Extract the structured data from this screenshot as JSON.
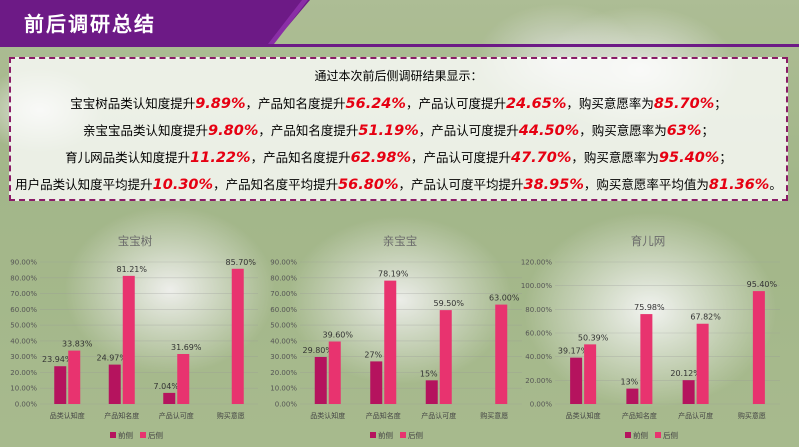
{
  "page": {
    "title": "前后调研总结",
    "summary_intro": "通过本次前后侧调研结果显示：",
    "summary_lines": [
      [
        {
          "t": "宝宝树品类认知度提升"
        },
        {
          "t": "9.89%",
          "v": true
        },
        {
          "t": "，产品知名度提升"
        },
        {
          "t": "56.24%",
          "v": true
        },
        {
          "t": "，产品认可度提升"
        },
        {
          "t": "24.65%",
          "v": true
        },
        {
          "t": "，购买意愿率为"
        },
        {
          "t": "85.70%",
          "v": true
        },
        {
          "t": "；"
        }
      ],
      [
        {
          "t": "亲宝宝品类认知度提升"
        },
        {
          "t": "9.80%",
          "v": true
        },
        {
          "t": "，产品知名度提升"
        },
        {
          "t": "51.19%",
          "v": true
        },
        {
          "t": "，产品认可度提升"
        },
        {
          "t": "44.50%",
          "v": true
        },
        {
          "t": "，购买意愿率为"
        },
        {
          "t": "63%",
          "v": true
        },
        {
          "t": "；"
        }
      ],
      [
        {
          "t": "育儿网品类认知度提升"
        },
        {
          "t": "11.22%",
          "v": true
        },
        {
          "t": "，产品知名度提升"
        },
        {
          "t": "62.98%",
          "v": true
        },
        {
          "t": "，产品认可度提升"
        },
        {
          "t": "47.70%",
          "v": true
        },
        {
          "t": "，购买意愿率为"
        },
        {
          "t": "95.40%",
          "v": true
        },
        {
          "t": "；"
        }
      ],
      [
        {
          "t": "用户品类认知度平均提升"
        },
        {
          "t": "10.30%",
          "v": true
        },
        {
          "t": "，产品知名度平均提升"
        },
        {
          "t": "56.80%",
          "v": true
        },
        {
          "t": "，产品认可度平均提升"
        },
        {
          "t": "38.95%",
          "v": true
        },
        {
          "t": "，购买意愿率平均值为"
        },
        {
          "t": "81.36%",
          "v": true
        },
        {
          "t": "。"
        }
      ]
    ]
  },
  "colors": {
    "before": "#b5135e",
    "after": "#e8336f",
    "summary_value": "#e60012",
    "banner": "#6d1a86"
  },
  "chart_data": [
    {
      "type": "bar",
      "title": "宝宝树",
      "categories": [
        "品类认知度",
        "产品知名度",
        "产品认可度",
        "购买意愿"
      ],
      "series": [
        {
          "name": "前侧",
          "values": [
            23.94,
            24.97,
            7.04,
            null
          ],
          "labels": [
            "23.94%",
            "24.97%",
            "7.04%",
            ""
          ]
        },
        {
          "name": "后侧",
          "values": [
            33.83,
            81.21,
            31.69,
            85.7
          ],
          "labels": [
            "33.83%",
            "81.21%",
            "31.69%",
            "85.70%"
          ]
        }
      ],
      "ylim": [
        0,
        90
      ],
      "yticks": [
        "0.00%",
        "10.00%",
        "20.00%",
        "30.00%",
        "40.00%",
        "50.00%",
        "60.00%",
        "70.00%",
        "80.00%",
        "90.00%"
      ],
      "ytick_values": [
        0,
        10,
        20,
        30,
        40,
        50,
        60,
        70,
        80,
        90
      ],
      "grid": true,
      "legend": "bottom"
    },
    {
      "type": "bar",
      "title": "亲宝宝",
      "categories": [
        "品类认知度",
        "产品知名度",
        "产品认可度",
        "购买意愿"
      ],
      "series": [
        {
          "name": "前侧",
          "values": [
            29.8,
            27,
            15,
            null
          ],
          "labels": [
            "29.80%",
            "27%",
            "15%",
            ""
          ]
        },
        {
          "name": "后侧",
          "values": [
            39.6,
            78.19,
            59.5,
            63.0
          ],
          "labels": [
            "39.60%",
            "78.19%",
            "59.50%",
            "63.00%"
          ]
        }
      ],
      "ylim": [
        0,
        90
      ],
      "yticks": [
        "0.00%",
        "10.00%",
        "20.00%",
        "30.00%",
        "40.00%",
        "50.00%",
        "60.00%",
        "70.00%",
        "80.00%",
        "90.00%"
      ],
      "ytick_values": [
        0,
        10,
        20,
        30,
        40,
        50,
        60,
        70,
        80,
        90
      ],
      "grid": true,
      "legend": "bottom"
    },
    {
      "type": "bar",
      "title": "育儿网",
      "categories": [
        "品类认知度",
        "产品知名度",
        "产品认可度",
        "购买意愿"
      ],
      "series": [
        {
          "name": "前侧",
          "values": [
            39.17,
            13,
            20.12,
            null
          ],
          "labels": [
            "39.17%",
            "13%",
            "20.12%",
            ""
          ]
        },
        {
          "name": "后侧",
          "values": [
            50.39,
            75.98,
            67.82,
            95.4
          ],
          "labels": [
            "50.39%",
            "75.98%",
            "67.82%",
            "95.40%"
          ]
        }
      ],
      "ylim": [
        0,
        120
      ],
      "yticks": [
        "0.00%",
        "20.00%",
        "40.00%",
        "60.00%",
        "80.00%",
        "100.00%",
        "120.00%"
      ],
      "ytick_values": [
        0,
        20,
        40,
        60,
        80,
        100,
        120
      ],
      "grid": true,
      "legend": "bottom"
    }
  ]
}
